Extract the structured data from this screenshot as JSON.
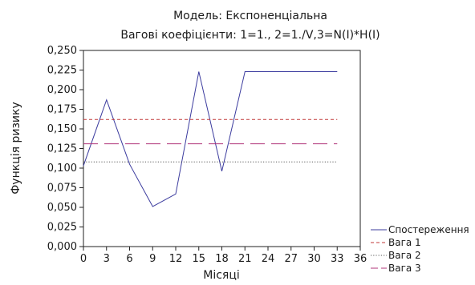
{
  "chart_data": {
    "type": "line",
    "title": "Модель: Експоненціальна",
    "subtitle": "Вагові коефіцієнти: 1=1., 2=1./V,3=N(I)*H(I)",
    "xlabel": "Місяці",
    "ylabel": "Функція ризику",
    "xlim": [
      0,
      36
    ],
    "ylim": [
      0,
      0.25
    ],
    "x_ticks": [
      "0",
      "3",
      "6",
      "9",
      "12",
      "15",
      "18",
      "21",
      "24",
      "27",
      "30",
      "33",
      "36"
    ],
    "y_ticks": [
      "0,000",
      "0,025",
      "0,050",
      "0,075",
      "0,100",
      "0,125",
      "0,150",
      "0,175",
      "0,200",
      "0,225",
      "0,250"
    ],
    "grid": false,
    "legend_position": "right-bottom",
    "series": [
      {
        "name": "Спостереження",
        "style": "solid",
        "color": "#3b3b9e",
        "x": [
          0,
          3,
          6,
          9,
          12,
          15,
          18,
          21,
          24,
          27,
          30,
          33
        ],
        "y": [
          0.103,
          0.187,
          0.105,
          0.051,
          0.067,
          0.223,
          0.096,
          0.223,
          0.223,
          0.223,
          0.223,
          0.223
        ]
      },
      {
        "name": "Вага 1",
        "style": "short-dash",
        "color": "#c23a3a",
        "x": [
          0,
          33
        ],
        "y": [
          0.162,
          0.162
        ]
      },
      {
        "name": "Вага 2",
        "style": "dotted",
        "color": "#555555",
        "x": [
          0,
          33
        ],
        "y": [
          0.108,
          0.108
        ]
      },
      {
        "name": "Вага 3",
        "style": "long-dash",
        "color": "#b0357a",
        "x": [
          0,
          33
        ],
        "y": [
          0.131,
          0.131
        ]
      }
    ]
  }
}
